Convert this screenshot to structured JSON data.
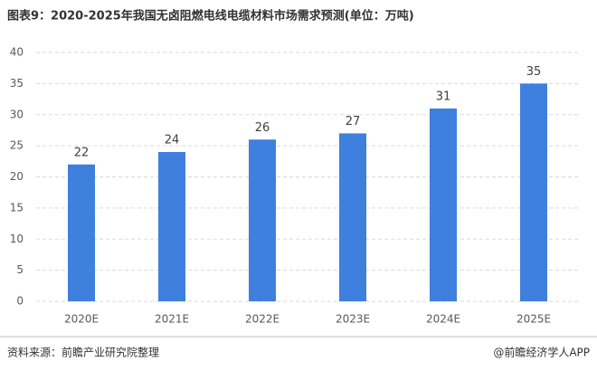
{
  "chart_data": {
    "type": "bar",
    "title": "图表9：2020-2025年我国无卤阻燃电线电缆材料市场需求预测(单位：万吨)",
    "categories": [
      "2020E",
      "2021E",
      "2022E",
      "2023E",
      "2024E",
      "2025E"
    ],
    "values": [
      22,
      24,
      26,
      27,
      31,
      35
    ],
    "color": "#3f7fde",
    "ylim": [
      0,
      40
    ],
    "yticks": [
      0,
      5,
      10,
      15,
      20,
      25,
      30,
      35,
      40
    ],
    "grid": true,
    "source": "资料来源：前瞻产业研究院整理",
    "credit": "@前瞻经济学人APP"
  }
}
